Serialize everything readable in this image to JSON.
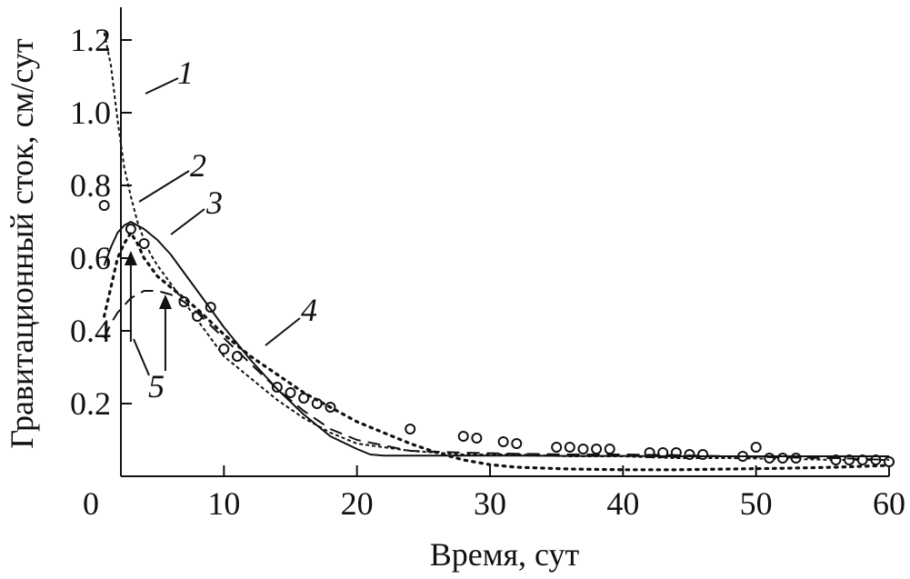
{
  "chart_data": {
    "type": "line",
    "title": "",
    "xlabel": "Время, сут",
    "ylabel": "Гравитационный сток, см/сут",
    "xlim": [
      0,
      60
    ],
    "ylim": [
      0,
      1.3
    ],
    "x_ticks": [
      0,
      10,
      20,
      30,
      40,
      50,
      60
    ],
    "x_tick_labels": [
      "0",
      "10",
      "20",
      "30",
      "40",
      "50",
      "60"
    ],
    "y_ticks": [
      0.2,
      0.4,
      0.6,
      0.8,
      1.0,
      1.2
    ],
    "y_tick_labels": [
      "0.2",
      "0.4",
      "0.6",
      "0.8",
      "1.0",
      "1.2"
    ],
    "grid": false,
    "series": [
      {
        "id": "1",
        "style": "short-dash",
        "x": [
          1,
          1.5,
          2,
          2.5,
          3,
          3.5,
          4,
          4.5,
          5,
          6,
          7,
          8,
          9,
          10,
          12,
          14,
          16,
          18,
          20,
          24,
          28,
          32,
          36,
          40,
          44,
          48,
          52,
          56,
          60
        ],
        "values": [
          1.22,
          1.13,
          0.98,
          0.85,
          0.77,
          0.7,
          0.65,
          0.61,
          0.58,
          0.53,
          0.48,
          0.43,
          0.38,
          0.33,
          0.27,
          0.21,
          0.16,
          0.12,
          0.09,
          0.07,
          0.06,
          0.06,
          0.055,
          0.055,
          0.05,
          0.05,
          0.048,
          0.045,
          0.045
        ]
      },
      {
        "id": "2",
        "style": "markers",
        "x": [
          1,
          3,
          4,
          7,
          8,
          9,
          10,
          11,
          14,
          15,
          16,
          17,
          18,
          24,
          28,
          29,
          31,
          32,
          35,
          36,
          37,
          38,
          39,
          42,
          43,
          44,
          45,
          46,
          49,
          50,
          51,
          52,
          53,
          56,
          57,
          58,
          59,
          60
        ],
        "values": [
          0.745,
          0.68,
          0.64,
          0.48,
          0.44,
          0.465,
          0.35,
          0.33,
          0.245,
          0.23,
          0.215,
          0.2,
          0.19,
          0.13,
          0.11,
          0.105,
          0.095,
          0.09,
          0.08,
          0.08,
          0.075,
          0.075,
          0.075,
          0.065,
          0.065,
          0.065,
          0.06,
          0.06,
          0.055,
          0.08,
          0.05,
          0.05,
          0.05,
          0.045,
          0.045,
          0.045,
          0.045,
          0.04
        ]
      },
      {
        "id": "3",
        "style": "solid",
        "x": [
          1,
          1.5,
          2,
          2.5,
          3,
          3.5,
          4,
          5,
          6,
          7,
          8,
          10,
          12,
          14,
          16,
          18,
          20,
          21,
          22,
          24,
          28,
          32,
          36,
          40,
          44,
          48,
          52,
          56,
          60
        ],
        "values": [
          0.58,
          0.63,
          0.67,
          0.69,
          0.7,
          0.69,
          0.68,
          0.65,
          0.61,
          0.56,
          0.51,
          0.41,
          0.32,
          0.24,
          0.17,
          0.11,
          0.075,
          0.06,
          0.057,
          0.057,
          0.057,
          0.057,
          0.056,
          0.056,
          0.055,
          0.055,
          0.055,
          0.055,
          0.055
        ]
      },
      {
        "id": "4",
        "style": "dotted",
        "x": [
          1,
          1.5,
          2,
          2.5,
          3,
          3.5,
          4,
          5,
          6,
          8,
          10,
          12,
          14,
          16,
          18,
          20,
          22,
          24,
          26,
          28,
          30,
          32,
          36,
          40,
          44,
          48,
          52,
          56,
          60
        ],
        "values": [
          0.44,
          0.52,
          0.6,
          0.64,
          0.67,
          0.64,
          0.6,
          0.55,
          0.52,
          0.46,
          0.39,
          0.33,
          0.28,
          0.23,
          0.19,
          0.15,
          0.12,
          0.09,
          0.065,
          0.045,
          0.032,
          0.025,
          0.02,
          0.018,
          0.018,
          0.02,
          0.022,
          0.025,
          0.03
        ]
      },
      {
        "id": "5",
        "style": "long-dash",
        "x": [
          1,
          1.5,
          2,
          3,
          4,
          5,
          6,
          7,
          8,
          10,
          12,
          14,
          16,
          18,
          20,
          24,
          28,
          32,
          36,
          40,
          44,
          48,
          52,
          56,
          60
        ],
        "values": [
          0.38,
          0.42,
          0.45,
          0.49,
          0.51,
          0.51,
          0.5,
          0.48,
          0.45,
          0.38,
          0.31,
          0.24,
          0.18,
          0.13,
          0.1,
          0.07,
          0.065,
          0.062,
          0.06,
          0.06,
          0.058,
          0.055,
          0.052,
          0.05,
          0.045
        ]
      }
    ],
    "curve_labels": [
      {
        "text": "1",
        "series": "1",
        "at_x": 1.7,
        "at_y": 1.05
      },
      {
        "text": "2",
        "series": "2",
        "at_x": 1.0,
        "at_y": 0.745
      },
      {
        "text": "3",
        "series": "3",
        "at_x": 4.2,
        "at_y": 0.67
      },
      {
        "text": "4",
        "series": "4",
        "at_x": 11.5,
        "at_y": 0.36
      },
      {
        "text": "5",
        "series": "5",
        "at_x": 1.0,
        "at_y": 0.4
      }
    ],
    "arrows": [
      {
        "x": 3.0,
        "from_y": 0.37,
        "to_y": 0.62
      },
      {
        "x": 5.6,
        "from_y": 0.29,
        "to_y": 0.5
      }
    ]
  }
}
